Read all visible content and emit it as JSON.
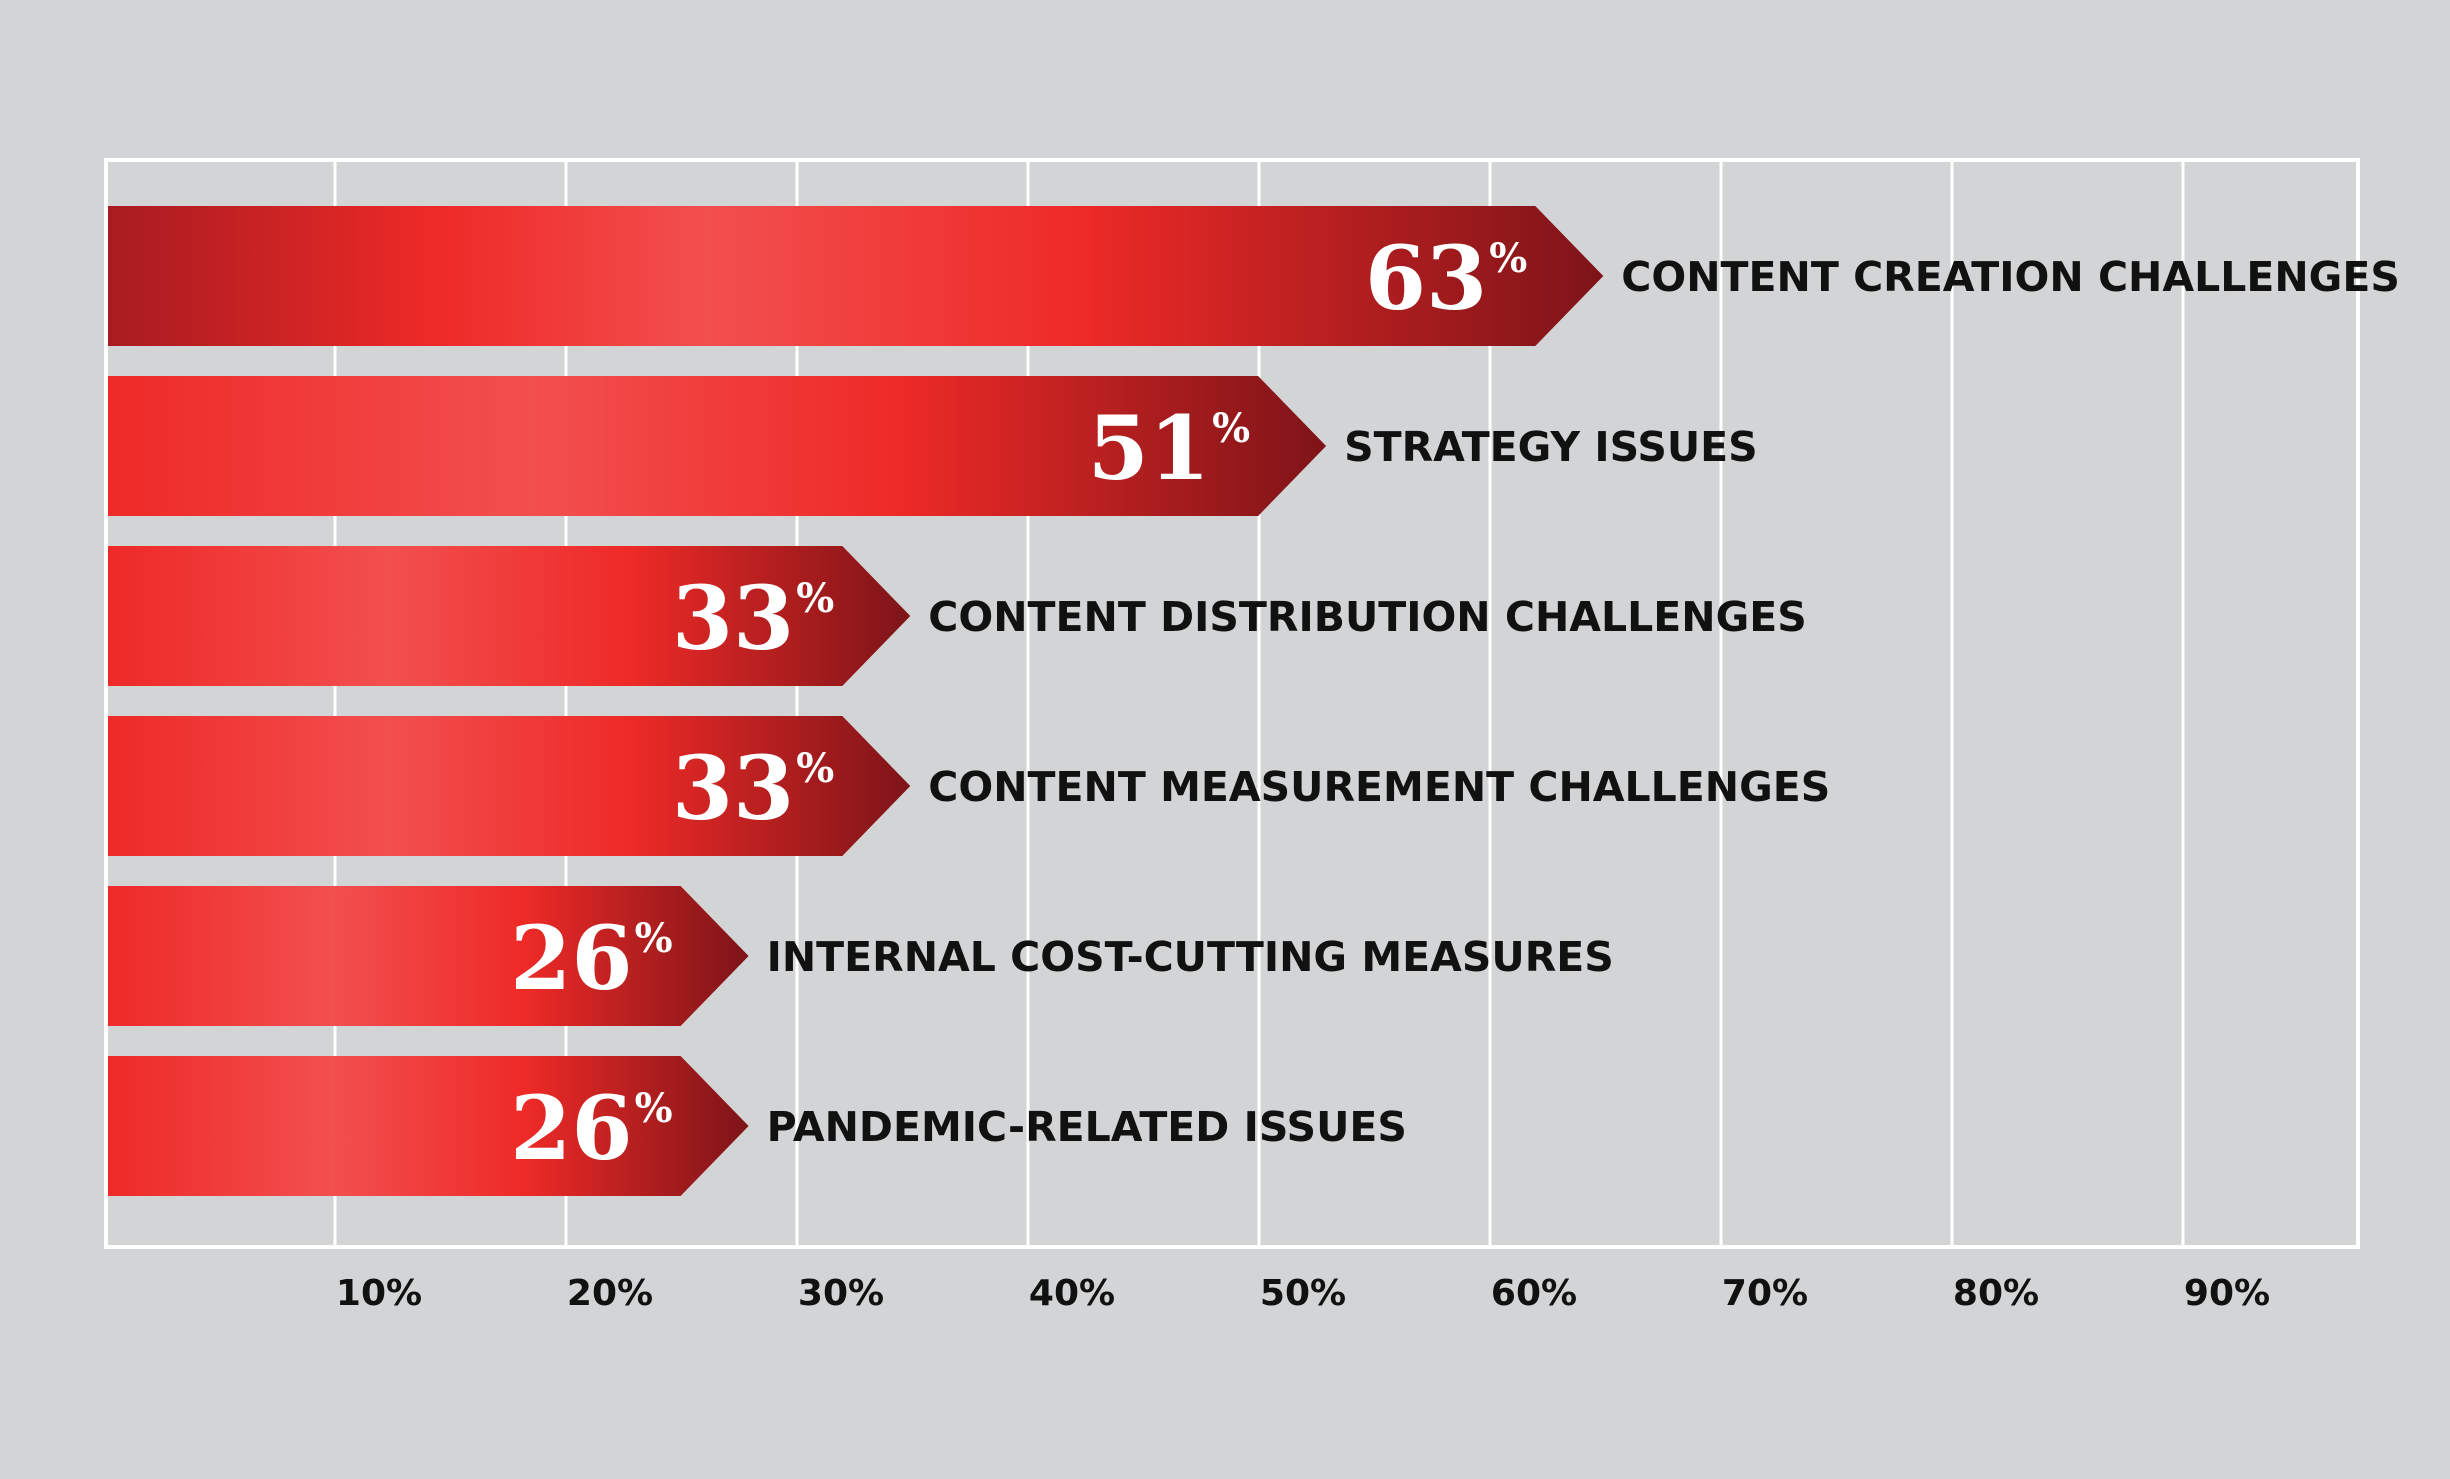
{
  "colors": {
    "background": "#d3d4d6",
    "frame": "#ffffff",
    "bar_light": "#f24f4f",
    "bar_mid": "#ee2a27",
    "bar_dark": "#7d1418",
    "label_text": "#111111",
    "value_text": "#ffffff"
  },
  "chart_data": {
    "type": "bar",
    "orientation": "horizontal",
    "title": "",
    "xlabel": "",
    "ylabel": "",
    "xlim": [
      0,
      97
    ],
    "grid": true,
    "legend": "none",
    "categories": [
      "CONTENT CREATION CHALLENGES",
      "STRATEGY ISSUES",
      "CONTENT DISTRIBUTION CHALLENGES",
      "CONTENT MEASUREMENT CHALLENGES",
      "INTERNAL COST-CUTTING MEASURES",
      "PANDEMIC-RELATED ISSUES"
    ],
    "values": [
      63,
      51,
      33,
      33,
      26,
      26
    ],
    "value_labels": [
      "63",
      "51",
      "33",
      "33",
      "26",
      "26"
    ],
    "value_suffix": "%",
    "x_ticks": [
      10,
      20,
      30,
      40,
      50,
      60,
      70,
      80,
      90
    ],
    "x_tick_labels": [
      "10%",
      "20%",
      "30%",
      "40%",
      "50%",
      "60%",
      "70%",
      "80%",
      "90%"
    ]
  }
}
